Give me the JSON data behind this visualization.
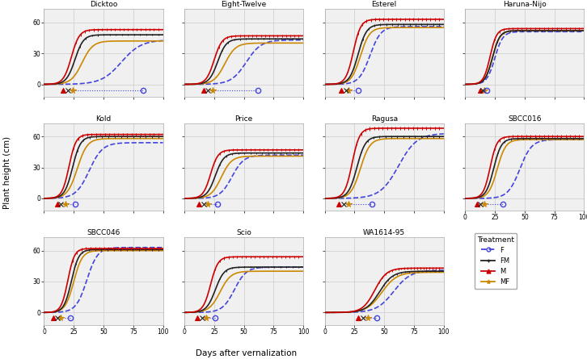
{
  "varieties": [
    "Dicktoo",
    "Eight-Twelve",
    "Esterel",
    "Haruna-Nijo",
    "Kold",
    "Price",
    "Ragusa",
    "SBCC016",
    "SBCC046",
    "Scio",
    "WA1614-95"
  ],
  "treatments": [
    "MF",
    "FM",
    "M",
    "F"
  ],
  "colors": {
    "F": "#4444dd",
    "FM": "#222222",
    "M": "#cc0000",
    "MF": "#cc8800"
  },
  "linestyles": {
    "F": "--",
    "FM": "-",
    "M": "-",
    "MF": "-"
  },
  "linewidths": {
    "F": 1.2,
    "FM": 1.2,
    "M": 1.2,
    "MF": 1.2
  },
  "x_range": [
    0,
    100
  ],
  "y_range": [
    -12,
    73
  ],
  "y_ticks": [
    0,
    30,
    60
  ],
  "x_ticks": [
    0,
    25,
    50,
    75,
    100
  ],
  "xlabel": "Days after vernalization",
  "ylabel": "Plant height (cm)",
  "grid_color": "#cccccc",
  "bg_color": "#f0f0f0",
  "variety_params": {
    "Dicktoo": {
      "F": {
        "t50": 65,
        "k": 0.12,
        "max": 43
      },
      "FM": {
        "t50": 26,
        "k": 0.28,
        "max": 48
      },
      "M": {
        "t50": 23,
        "k": 0.3,
        "max": 53
      },
      "MF": {
        "t50": 32,
        "k": 0.22,
        "max": 42
      }
    },
    "Eight-Twelve": {
      "F": {
        "t50": 52,
        "k": 0.16,
        "max": 43
      },
      "FM": {
        "t50": 28,
        "k": 0.28,
        "max": 44
      },
      "M": {
        "t50": 25,
        "k": 0.3,
        "max": 47
      },
      "MF": {
        "t50": 34,
        "k": 0.22,
        "max": 40
      }
    },
    "Esterel": {
      "F": {
        "t50": 38,
        "k": 0.22,
        "max": 56
      },
      "FM": {
        "t50": 28,
        "k": 0.28,
        "max": 58
      },
      "M": {
        "t50": 24,
        "k": 0.32,
        "max": 63
      },
      "MF": {
        "t50": 30,
        "k": 0.26,
        "max": 55
      }
    },
    "Haruna-Nijo": {
      "F": {
        "t50": 25,
        "k": 0.3,
        "max": 51
      },
      "FM": {
        "t50": 23,
        "k": 0.33,
        "max": 52
      },
      "M": {
        "t50": 21,
        "k": 0.36,
        "max": 54
      },
      "MF": {
        "t50": 23,
        "k": 0.31,
        "max": 52
      }
    },
    "Kold": {
      "F": {
        "t50": 38,
        "k": 0.18,
        "max": 54
      },
      "FM": {
        "t50": 24,
        "k": 0.3,
        "max": 60
      },
      "M": {
        "t50": 21,
        "k": 0.34,
        "max": 62
      },
      "MF": {
        "t50": 28,
        "k": 0.24,
        "max": 58
      }
    },
    "Price": {
      "F": {
        "t50": 40,
        "k": 0.2,
        "max": 42
      },
      "FM": {
        "t50": 26,
        "k": 0.28,
        "max": 44
      },
      "M": {
        "t50": 22,
        "k": 0.32,
        "max": 47
      },
      "MF": {
        "t50": 31,
        "k": 0.23,
        "max": 41
      }
    },
    "Ragusa": {
      "F": {
        "t50": 62,
        "k": 0.13,
        "max": 63
      },
      "FM": {
        "t50": 27,
        "k": 0.28,
        "max": 60
      },
      "M": {
        "t50": 23,
        "k": 0.32,
        "max": 68
      },
      "MF": {
        "t50": 30,
        "k": 0.25,
        "max": 58
      }
    },
    "SBCC016": {
      "F": {
        "t50": 46,
        "k": 0.2,
        "max": 57
      },
      "FM": {
        "t50": 24,
        "k": 0.31,
        "max": 58
      },
      "M": {
        "t50": 21,
        "k": 0.35,
        "max": 60
      },
      "MF": {
        "t50": 27,
        "k": 0.28,
        "max": 57
      }
    },
    "SBCC046": {
      "F": {
        "t50": 36,
        "k": 0.22,
        "max": 63
      },
      "FM": {
        "t50": 23,
        "k": 0.32,
        "max": 61
      },
      "M": {
        "t50": 20,
        "k": 0.36,
        "max": 62
      },
      "MF": {
        "t50": 25,
        "k": 0.28,
        "max": 60
      }
    },
    "Scio": {
      "F": {
        "t50": 42,
        "k": 0.2,
        "max": 44
      },
      "FM": {
        "t50": 26,
        "k": 0.27,
        "max": 44
      },
      "M": {
        "t50": 22,
        "k": 0.32,
        "max": 54
      },
      "MF": {
        "t50": 30,
        "k": 0.22,
        "max": 40
      }
    },
    "WA1614-95": {
      "F": {
        "t50": 58,
        "k": 0.14,
        "max": 41
      },
      "FM": {
        "t50": 46,
        "k": 0.18,
        "max": 40
      },
      "M": {
        "t50": 42,
        "k": 0.2,
        "max": 43
      },
      "MF": {
        "t50": 48,
        "k": 0.16,
        "max": 39
      }
    }
  },
  "flowering_times": {
    "Dicktoo": {
      "F": 83,
      "FM": 20,
      "M": 16,
      "MF": 24
    },
    "Eight-Twelve": {
      "F": 62,
      "FM": 20,
      "M": 16,
      "MF": 24
    },
    "Esterel": {
      "F": 28,
      "FM": 18,
      "M": 14,
      "MF": 20
    },
    "Haruna-Nijo": {
      "F": 18,
      "FM": 15,
      "M": 13,
      "MF": 16
    },
    "Kold": {
      "F": 26,
      "FM": 14,
      "M": 11,
      "MF": 18
    },
    "Price": {
      "F": 28,
      "FM": 16,
      "M": 12,
      "MF": 20
    },
    "Ragusa": {
      "F": 40,
      "FM": 16,
      "M": 12,
      "MF": 20
    },
    "SBCC016": {
      "F": 32,
      "FM": 13,
      "M": 10,
      "MF": 16
    },
    "SBCC046": {
      "F": 22,
      "FM": 11,
      "M": 8,
      "MF": 14
    },
    "Scio": {
      "F": 26,
      "FM": 15,
      "M": 11,
      "MF": 18
    },
    "WA1614-95": {
      "F": 44,
      "FM": 32,
      "M": 28,
      "MF": 36
    }
  },
  "error_bar_treatments": [
    "M",
    "FM"
  ],
  "err_frac": {
    "M": 0.025,
    "FM": 0.018
  }
}
